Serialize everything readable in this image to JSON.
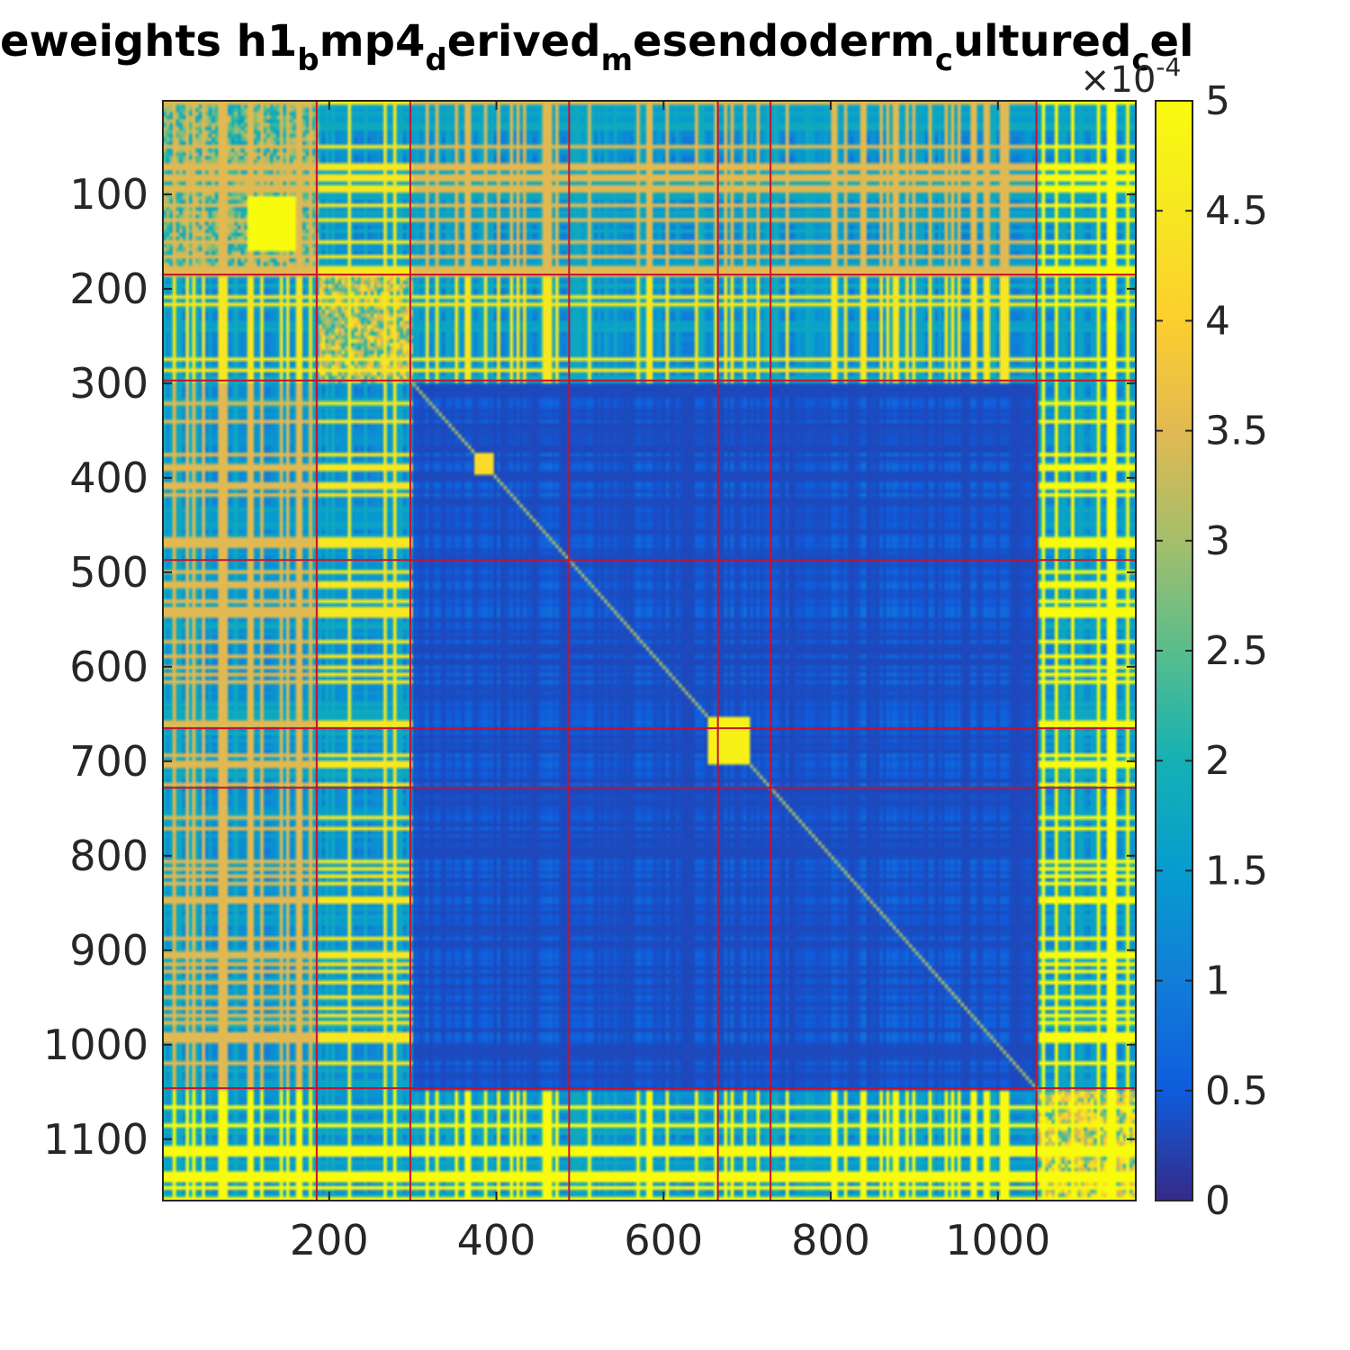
{
  "chart_data": {
    "type": "heatmap",
    "title_parts": [
      {
        "text": "eweights h1",
        "sub": false
      },
      {
        "text": "b",
        "sub": true
      },
      {
        "text": "mp4",
        "sub": false
      },
      {
        "text": "d",
        "sub": true
      },
      {
        "text": "erived",
        "sub": false
      },
      {
        "text": "m",
        "sub": true
      },
      {
        "text": "esendoderm",
        "sub": false
      },
      {
        "text": "c",
        "sub": true
      },
      {
        "text": "ultured",
        "sub": false
      },
      {
        "text": "c",
        "sub": true
      },
      {
        "text": "el",
        "sub": false
      }
    ],
    "matrix_size": 1165,
    "xlim": [
      1,
      1165
    ],
    "ylim": [
      1,
      1165
    ],
    "x_ticks": [
      {
        "value": 200,
        "label": "200"
      },
      {
        "value": 400,
        "label": "400"
      },
      {
        "value": 600,
        "label": "600"
      },
      {
        "value": 800,
        "label": "800"
      },
      {
        "value": 1000,
        "label": "1000"
      }
    ],
    "y_ticks": [
      {
        "value": 100,
        "label": "100"
      },
      {
        "value": 200,
        "label": "200"
      },
      {
        "value": 300,
        "label": "300"
      },
      {
        "value": 400,
        "label": "400"
      },
      {
        "value": 500,
        "label": "500"
      },
      {
        "value": 600,
        "label": "600"
      },
      {
        "value": 700,
        "label": "700"
      },
      {
        "value": 800,
        "label": "800"
      },
      {
        "value": 900,
        "label": "900"
      },
      {
        "value": 1000,
        "label": "1000"
      },
      {
        "value": 1100,
        "label": "1100"
      }
    ],
    "cluster_boundaries": [
      185,
      297,
      487,
      665,
      728,
      1046
    ],
    "colorbar": {
      "min": 0,
      "max": 0.0005,
      "colormap": "parula",
      "ticks": [
        {
          "value": 0,
          "label": "0"
        },
        {
          "value": 0.5,
          "label": "0.5"
        },
        {
          "value": 1,
          "label": "1"
        },
        {
          "value": 1.5,
          "label": "1.5"
        },
        {
          "value": 2,
          "label": "2"
        },
        {
          "value": 2.5,
          "label": "2.5"
        },
        {
          "value": 3,
          "label": "3"
        },
        {
          "value": 3.5,
          "label": "3.5"
        },
        {
          "value": 4,
          "label": "4"
        },
        {
          "value": 4.5,
          "label": "4.5"
        },
        {
          "value": 5,
          "label": "5"
        }
      ],
      "exponent_base": "×10",
      "exponent_power": "-4"
    },
    "grid": false,
    "colors": {
      "boundary_line": "#c8102e",
      "background_low": "#2b2e88",
      "high": "#f9f620",
      "axis": "#262626"
    },
    "structure": {
      "bright_blocks": [
        {
          "range": [
            1,
            185
          ],
          "level": 0.7
        },
        {
          "range": [
            185,
            297
          ],
          "level": 0.9
        },
        {
          "range": [
            1046,
            1165
          ],
          "level": 1.0
        }
      ],
      "dense_diagonal_blocks": [
        {
          "range": [
            100,
            160
          ],
          "level": 1.0
        },
        {
          "range": [
            370,
            395
          ],
          "level": 0.85
        },
        {
          "range": [
            650,
            700
          ],
          "level": 0.95
        }
      ]
    }
  }
}
